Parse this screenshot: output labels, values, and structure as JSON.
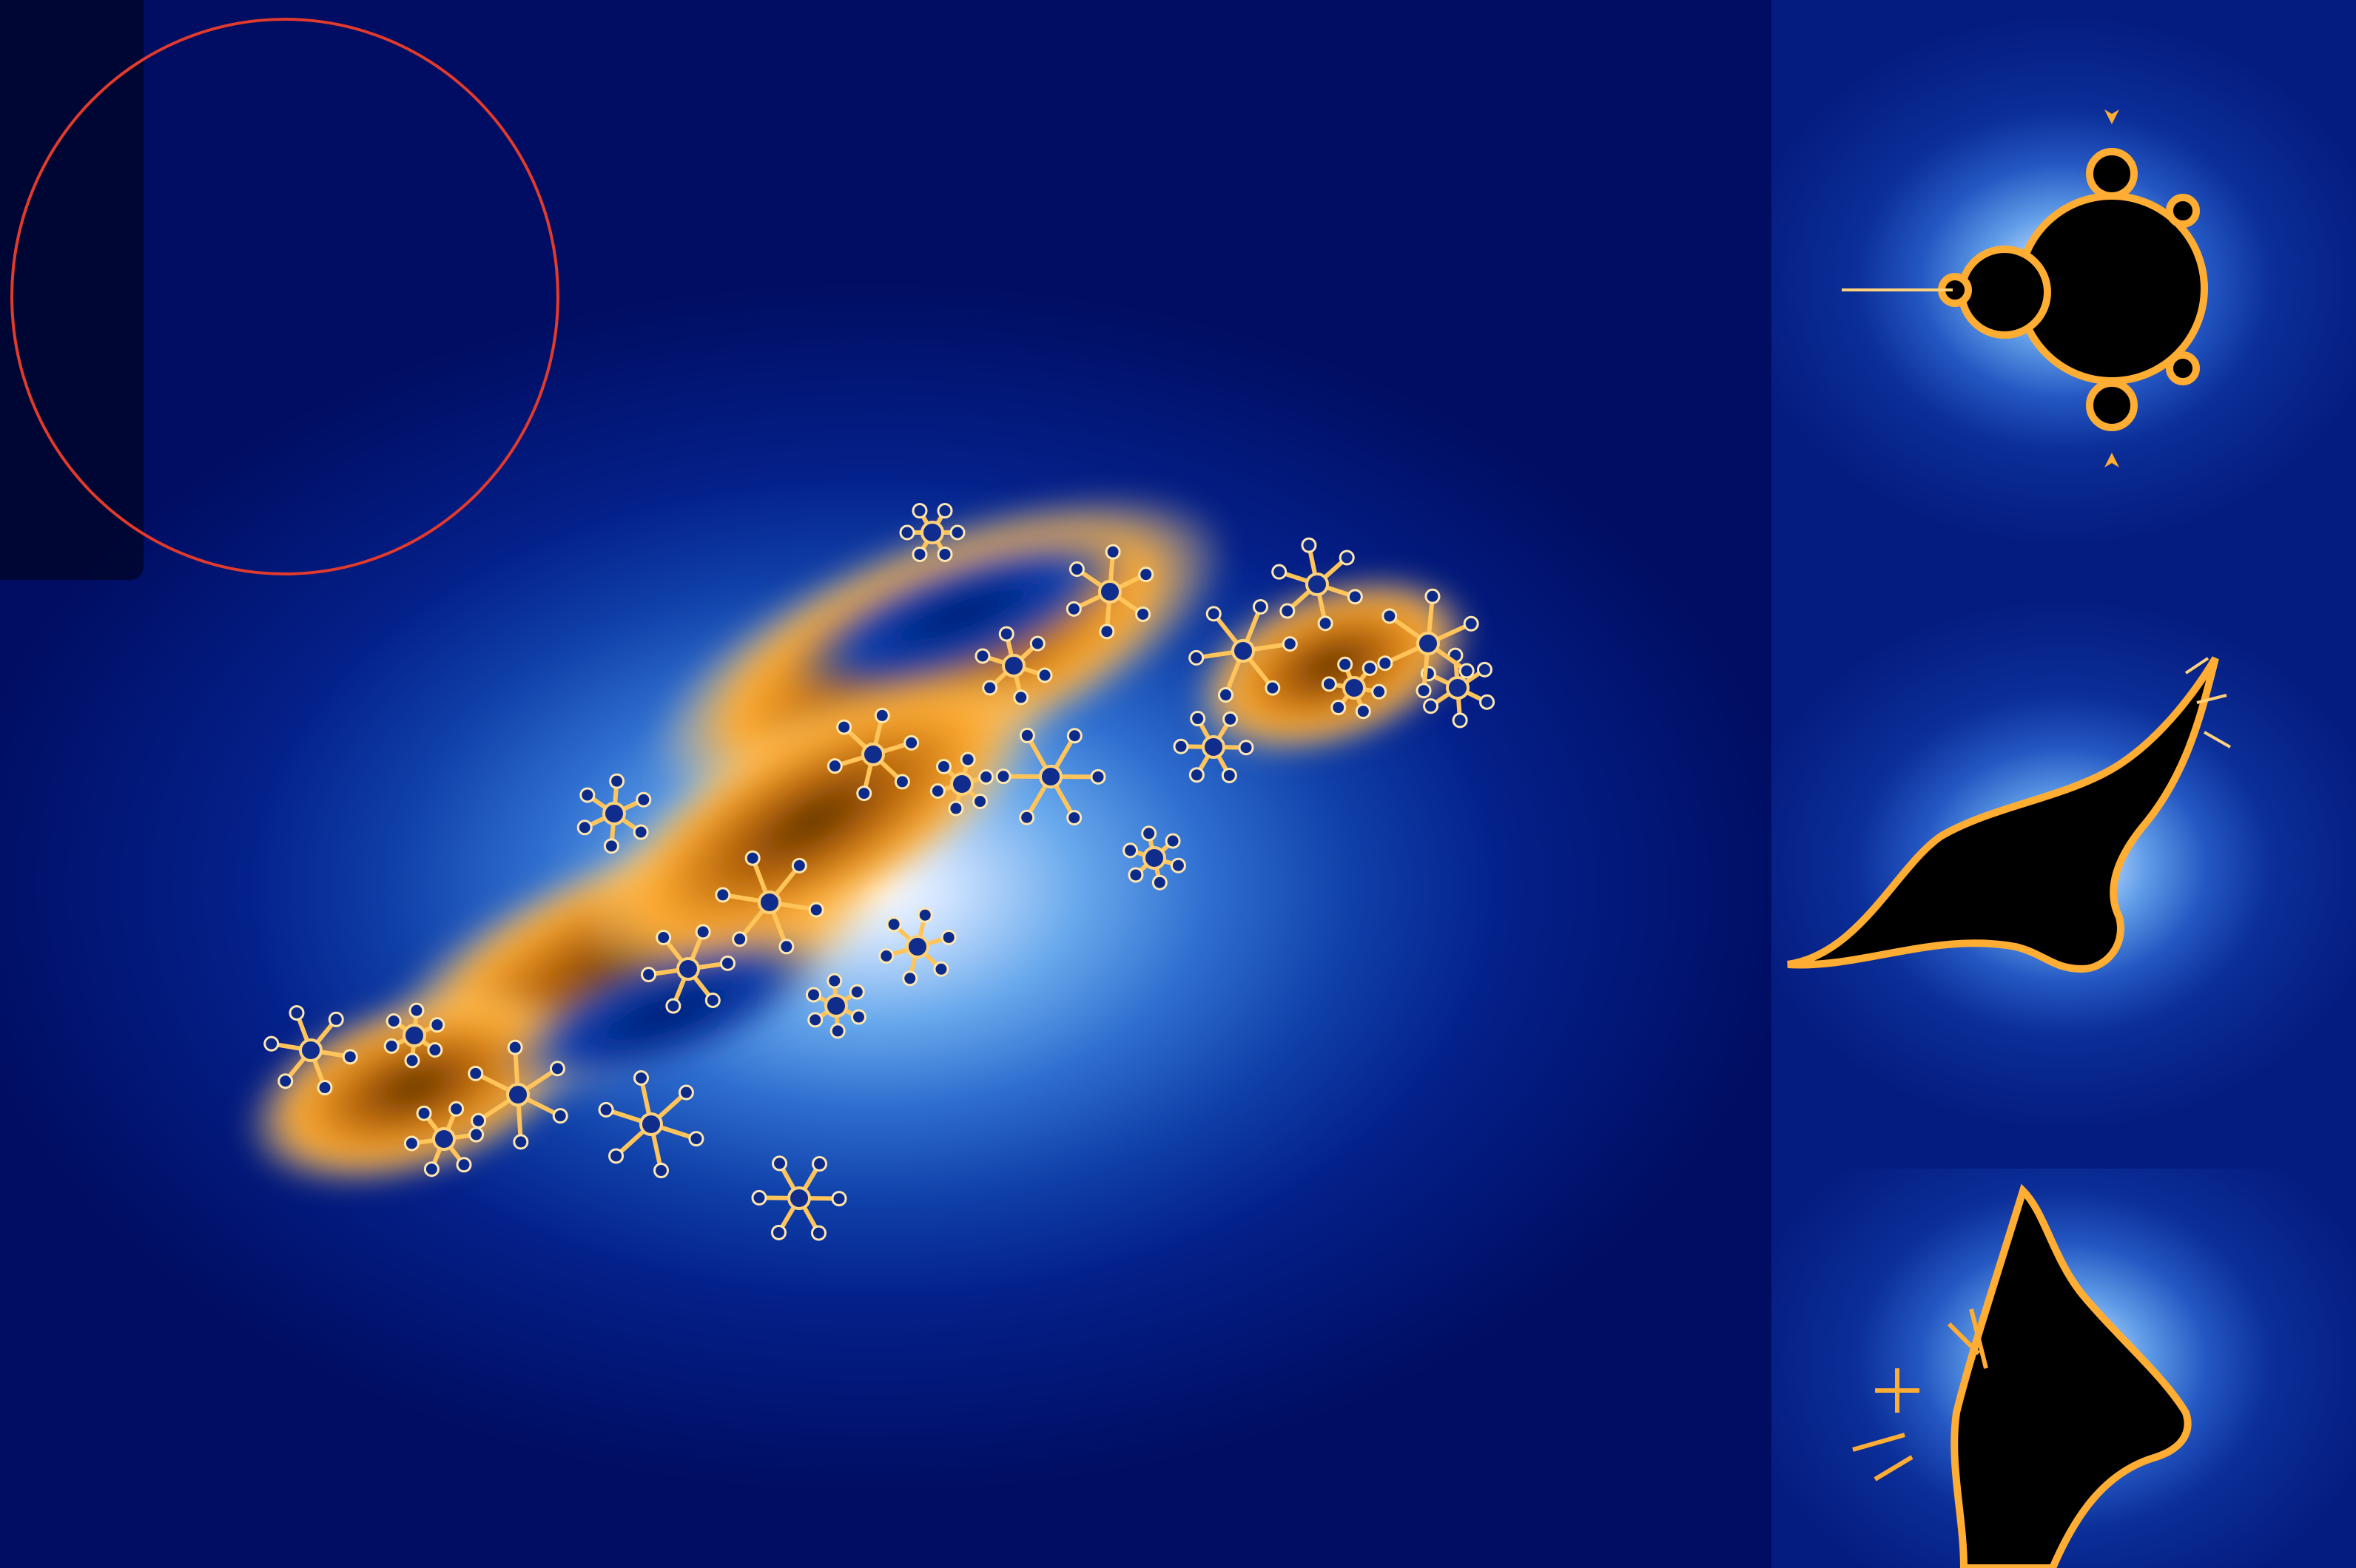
{
  "app": {
    "view": "julia-set-explorer"
  },
  "colors": {
    "deep_blue": "#000d5e",
    "mid_blue": "#2f6fd0",
    "glow": "#ffffff",
    "gold": "#ffad33",
    "dark_orange": "#6a3a05",
    "set_black": "#000000",
    "lens_red": "#e23a2c",
    "panel": "rgba(0,5,40,0.78)"
  },
  "main_view": {
    "icon": "julia-fractal-image"
  },
  "zoom_lens": {
    "icon": "circle-outline-icon"
  },
  "thumbnails": [
    {
      "icon": "mandelbrot-thumbnail"
    },
    {
      "icon": "fractal-detail-thumbnail"
    },
    {
      "icon": "fractal-edge-thumbnail"
    }
  ]
}
